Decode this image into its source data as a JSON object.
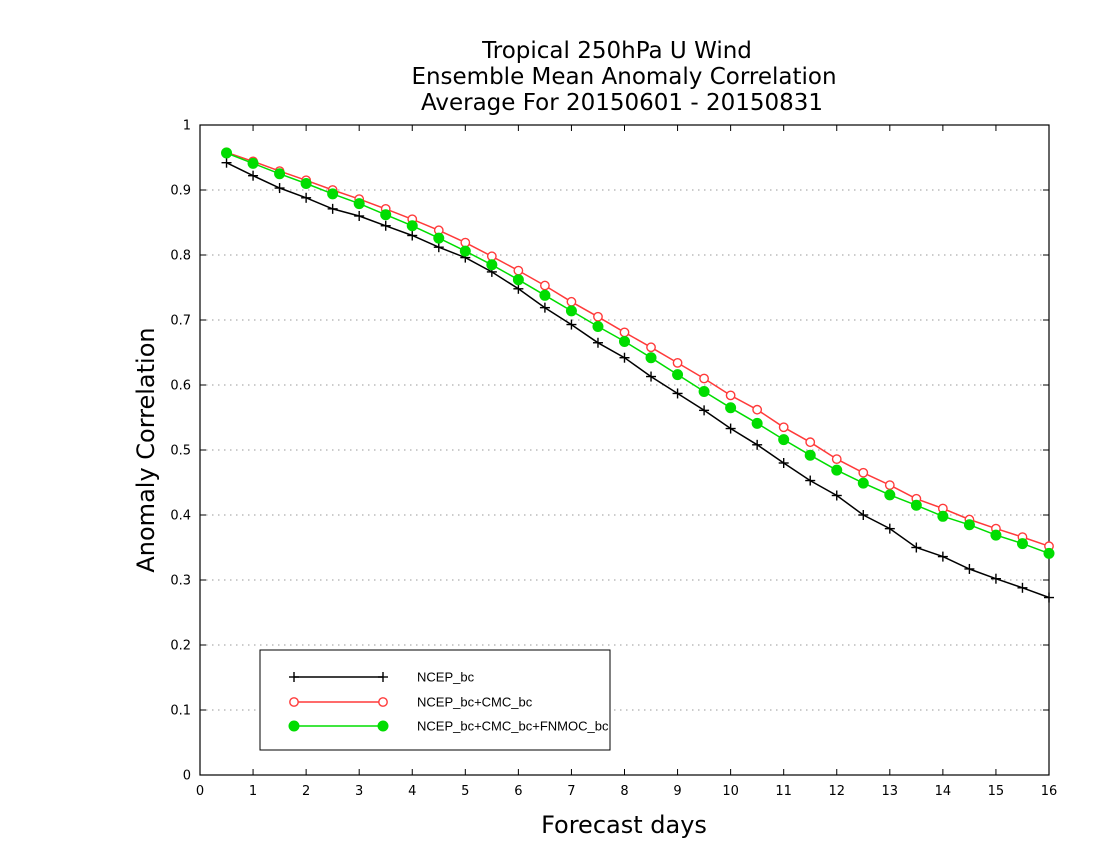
{
  "chart_data": {
    "type": "line",
    "title": [
      "Tropical 250hPa U Wind",
      "Ensemble Mean Anomaly Correlation",
      "Average For 20150601 - 20150831"
    ],
    "xlabel": "Forecast days",
    "ylabel": "Anomaly Correlation",
    "xlim": [
      0,
      16
    ],
    "ylim": [
      0,
      1
    ],
    "xticks": [
      "0",
      "1",
      "2",
      "3",
      "4",
      "5",
      "6",
      "7",
      "8",
      "9",
      "10",
      "11",
      "12",
      "13",
      "14",
      "15",
      "16"
    ],
    "yticks": [
      "0",
      "0.1",
      "0.2",
      "0.3",
      "0.4",
      "0.5",
      "0.6",
      "0.7",
      "0.8",
      "0.9",
      "1"
    ],
    "grid": "horizontal-dotted",
    "legend_position": "bottom-left",
    "x": [
      0.5,
      1,
      1.5,
      2,
      2.5,
      3,
      3.5,
      4,
      4.5,
      5,
      5.5,
      6,
      6.5,
      7,
      7.5,
      8,
      8.5,
      9,
      9.5,
      10,
      10.5,
      11,
      11.5,
      12,
      12.5,
      13,
      13.5,
      14,
      14.5,
      15,
      15.5,
      16
    ],
    "series": [
      {
        "name": "NCEP_bc",
        "color": "#000000",
        "marker": "plus",
        "values": [
          0.942,
          0.922,
          0.903,
          0.888,
          0.871,
          0.86,
          0.845,
          0.83,
          0.812,
          0.796,
          0.774,
          0.748,
          0.719,
          0.693,
          0.665,
          0.642,
          0.613,
          0.587,
          0.561,
          0.533,
          0.508,
          0.48,
          0.453,
          0.43,
          0.4,
          0.379,
          0.35,
          0.336,
          0.317,
          0.302,
          0.288,
          0.273
        ]
      },
      {
        "name": "NCEP_bc+CMC_bc",
        "color": "#ff3a3a",
        "marker": "open-circle",
        "values": [
          0.958,
          0.944,
          0.929,
          0.915,
          0.9,
          0.886,
          0.871,
          0.855,
          0.838,
          0.819,
          0.798,
          0.776,
          0.753,
          0.728,
          0.705,
          0.681,
          0.658,
          0.634,
          0.61,
          0.584,
          0.562,
          0.535,
          0.512,
          0.486,
          0.465,
          0.446,
          0.425,
          0.41,
          0.393,
          0.379,
          0.366,
          0.352
        ]
      },
      {
        "name": "NCEP_bc+CMC_bc+FNMOC_bc",
        "color": "#00dd00",
        "marker": "filled-circle",
        "values": [
          0.957,
          0.941,
          0.925,
          0.91,
          0.894,
          0.879,
          0.862,
          0.845,
          0.826,
          0.806,
          0.785,
          0.762,
          0.738,
          0.714,
          0.69,
          0.667,
          0.642,
          0.616,
          0.59,
          0.565,
          0.541,
          0.516,
          0.492,
          0.469,
          0.449,
          0.431,
          0.415,
          0.398,
          0.385,
          0.369,
          0.356,
          0.341
        ]
      }
    ]
  }
}
